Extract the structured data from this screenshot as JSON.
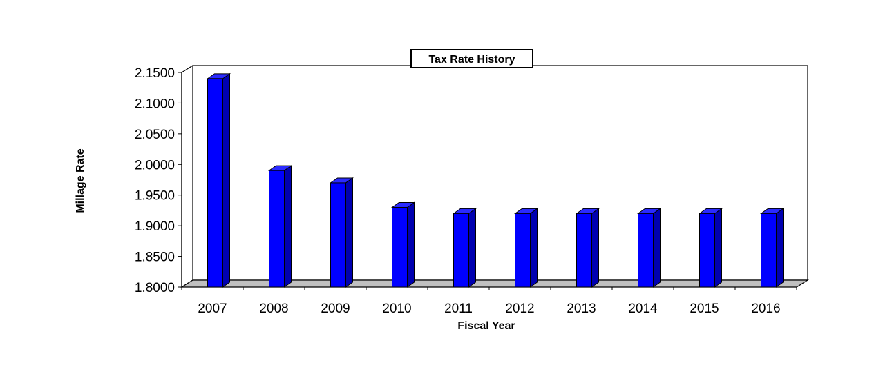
{
  "chart_data": {
    "type": "bar",
    "title": "Tax Rate History",
    "xlabel": "Fiscal Year",
    "ylabel": "Millage Rate",
    "categories": [
      "2007",
      "2008",
      "2009",
      "2010",
      "2011",
      "2012",
      "2013",
      "2014",
      "2015",
      "2016"
    ],
    "values": [
      2.14,
      1.99,
      1.97,
      1.93,
      1.92,
      1.92,
      1.92,
      1.92,
      1.92,
      1.92
    ],
    "yticks": [
      "1.8000",
      "1.8500",
      "1.9000",
      "1.9500",
      "2.0000",
      "2.0500",
      "2.1000",
      "2.1500"
    ],
    "ylim": [
      1.8,
      2.15
    ],
    "grid": false,
    "legend": "none",
    "bar_color": "#0000ff",
    "bar_side_color": "#0000b0",
    "bar_top_color": "#2a2aff",
    "floor_color": "#c0c0c0"
  }
}
